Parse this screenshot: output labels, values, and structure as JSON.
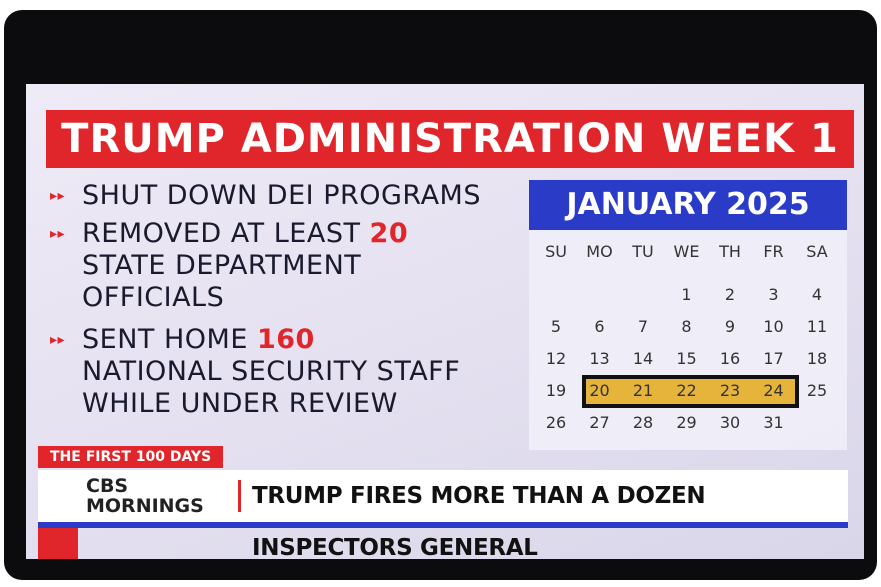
{
  "headline": "TRUMP ADMINISTRATION WEEK 1",
  "bullets": [
    {
      "lead": "SHUT DOWN DEI PROGRAMS"
    },
    {
      "lead": "REMOVED AT LEAST",
      "highlight": "20",
      "lines": [
        "STATE DEPARTMENT",
        "OFFICIALS"
      ]
    },
    {
      "lead": "SENT HOME",
      "highlight": "160",
      "lines": [
        "NATIONAL SECURITY STAFF",
        "WHILE UNDER REVIEW"
      ]
    }
  ],
  "calendar": {
    "title": "JANUARY 2025",
    "weekdays": [
      "SU",
      "MO",
      "TU",
      "WE",
      "TH",
      "FR",
      "SA"
    ],
    "weeks": [
      [
        null,
        null,
        null,
        1,
        2,
        3,
        4
      ],
      [
        5,
        6,
        7,
        8,
        9,
        10,
        11
      ],
      [
        12,
        13,
        14,
        15,
        16,
        17,
        18
      ],
      [
        19,
        20,
        21,
        22,
        23,
        24,
        25
      ],
      [
        26,
        27,
        28,
        29,
        30,
        31,
        null
      ]
    ],
    "highlight_days": [
      20,
      21,
      22,
      23,
      24
    ]
  },
  "tag": "THE FIRST 100 DAYS",
  "logo": {
    "line1": "CBS",
    "line2": "MORNINGS"
  },
  "lower_third": "TRUMP FIRES MORE THAN A DOZEN INSPECTORS GENERAL"
}
